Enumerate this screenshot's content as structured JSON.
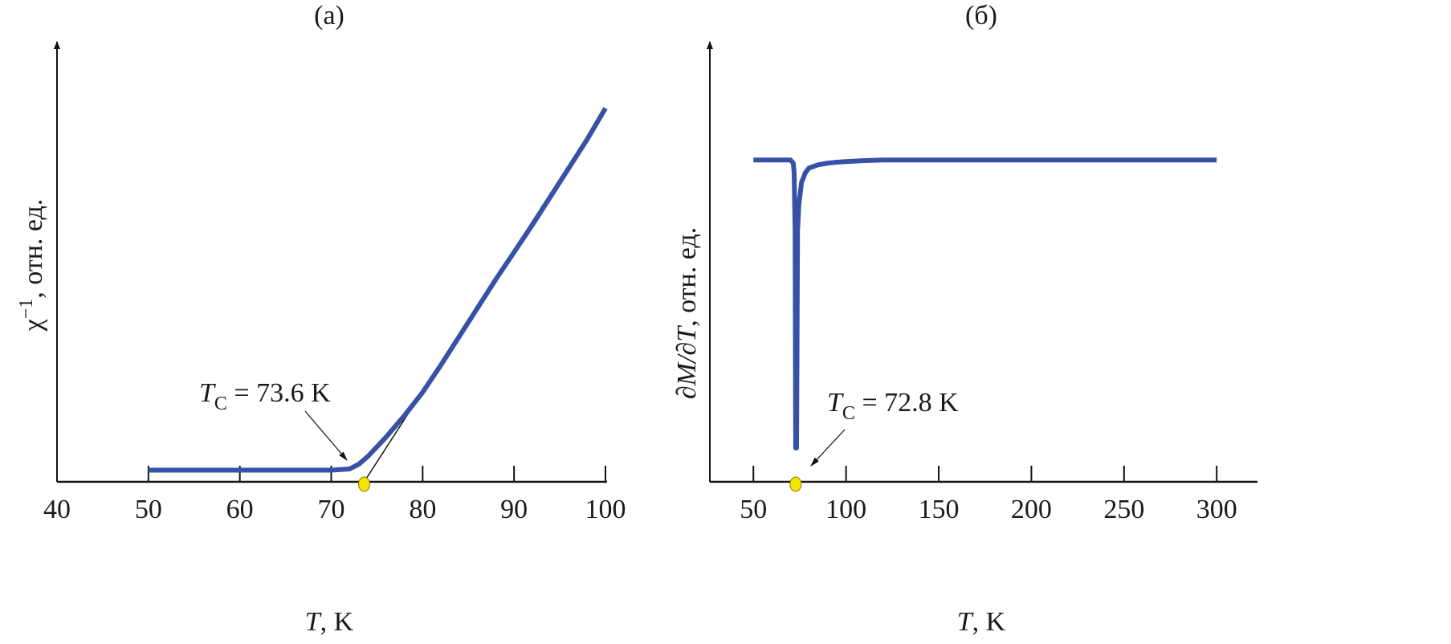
{
  "chart_data": [
    {
      "type": "line",
      "panel_label": "(a)",
      "title": "",
      "xlabel_var": "T",
      "xlabel_unit": ", K",
      "ylabel_var": "χ",
      "ylabel_sup": "−1",
      "ylabel_unit": ", отн. ед.",
      "xlim": [
        40,
        100
      ],
      "ylim": [
        0,
        1.1
      ],
      "xticks": [
        40,
        50,
        60,
        70,
        80,
        90,
        100
      ],
      "yticks": [],
      "grid": false,
      "series": [
        {
          "name": "chi_inverse",
          "color": "#3651a6",
          "x": [
            50,
            60,
            70,
            72,
            73,
            74,
            75,
            76,
            78,
            80,
            82,
            85,
            88,
            90,
            92,
            95,
            98,
            100
          ],
          "y": [
            0.03,
            0.03,
            0.03,
            0.033,
            0.045,
            0.065,
            0.09,
            0.115,
            0.17,
            0.23,
            0.3,
            0.41,
            0.52,
            0.59,
            0.66,
            0.77,
            0.88,
            0.96
          ]
        },
        {
          "name": "linear_fit",
          "color": "#111111",
          "x": [
            73.6,
            100
          ],
          "y": [
            0,
            0.96
          ]
        }
      ],
      "marker": {
        "x": 73.6,
        "y": 0,
        "color": "#f2e600"
      },
      "annotation": {
        "var": "T",
        "sub": "C",
        "text": " = 73.6 K",
        "target_x": 72
      }
    },
    {
      "type": "line",
      "panel_label": "(б)",
      "title": "",
      "xlabel_var": "T",
      "xlabel_unit": ", K",
      "ylabel_var": "∂M/∂T",
      "ylabel_unit": ", отн. ед.",
      "xlim": [
        26.5,
        322
      ],
      "ylim": [
        0,
        1.2
      ],
      "xticks": [
        50,
        100,
        150,
        200,
        250,
        300
      ],
      "yticks": [],
      "grid": false,
      "series": [
        {
          "name": "dM_dT",
          "color": "#3651a6",
          "x": [
            50,
            70,
            71.5,
            72,
            72.5,
            72.8,
            73.3,
            73.8,
            74.5,
            76,
            78,
            80,
            85,
            90,
            95,
            100,
            110,
            120,
            150,
            200,
            250,
            300
          ],
          "y": [
            1.0,
            1.0,
            0.99,
            0.96,
            0.78,
            0.105,
            0.105,
            0.78,
            0.86,
            0.93,
            0.96,
            0.975,
            0.985,
            0.99,
            0.993,
            0.995,
            0.998,
            1.0,
            1.0,
            1.0,
            1.0,
            1.0
          ]
        }
      ],
      "marker": {
        "x": 72.8,
        "y": 0,
        "color": "#f2e600"
      },
      "annotation": {
        "var": "T",
        "sub": "C",
        "text": " = 72.8 K",
        "target_x": 80
      }
    }
  ]
}
